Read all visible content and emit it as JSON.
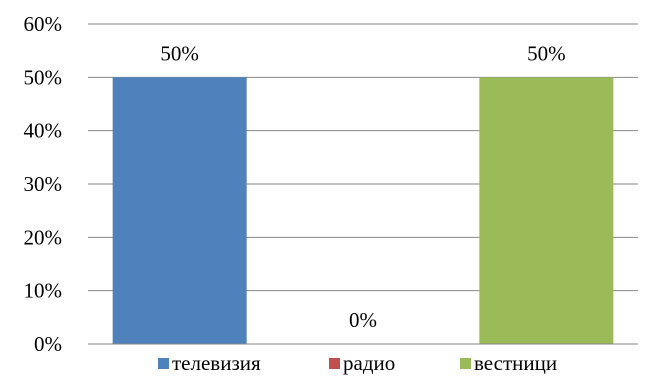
{
  "chart_data": {
    "type": "bar",
    "categories": [
      "телевизия",
      "радио",
      "вестници"
    ],
    "values": [
      50,
      0,
      50
    ],
    "value_labels": [
      "50%",
      "0%",
      "50%"
    ],
    "ylim": [
      0,
      60
    ],
    "y_ticks": [
      0,
      10,
      20,
      30,
      40,
      50,
      60
    ],
    "y_tick_labels": [
      "0%",
      "10%",
      "20%",
      "30%",
      "40%",
      "50%",
      "60%"
    ],
    "title": "",
    "xlabel": "",
    "ylabel": "",
    "grid": true,
    "legend_position": "bottom",
    "colors": [
      "#4F81BD",
      "#C0504D",
      "#9BBB59"
    ],
    "gridline_color": "#868686",
    "axis_color": "#868686"
  }
}
